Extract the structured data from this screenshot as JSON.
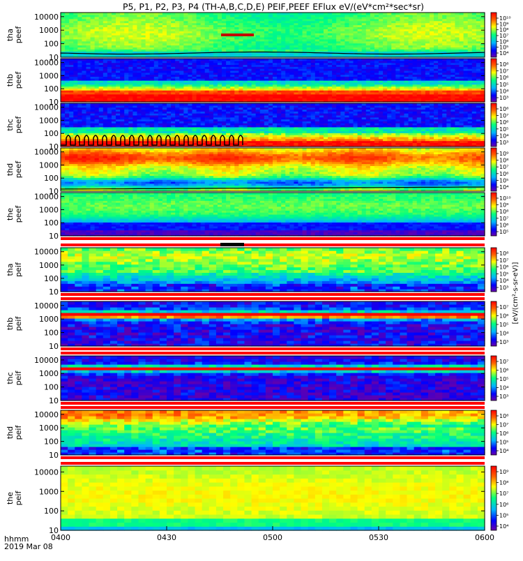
{
  "chart_data": {
    "type": "heatmap",
    "title": "P5, P1, P2, P3, P4 (TH-A,B,C,D,E) PEIF,PEEF EFlux eV/(eV*cm²*sec*sr)",
    "x_ticks": [
      "0400",
      "0430",
      "0500",
      "0530",
      "0600"
    ],
    "x_range": [
      "0400",
      "0600"
    ],
    "x_axis_left_label": "hhmm",
    "date_label": "2019 Mar 08",
    "y_scale": "log",
    "y_range": [
      10,
      20000
    ],
    "y_ticks": [
      "10000",
      "1000",
      "100",
      "10"
    ],
    "colorbar_label": "[eV/(cm²-s-sr-eV)]",
    "colorscale": [
      "#6a00a8",
      "#0000ff",
      "#00b4ff",
      "#00ff80",
      "#ffff00",
      "#ff6000",
      "#ff0000"
    ],
    "panels": [
      {
        "ylabel": [
          "tha",
          "peef"
        ],
        "cb_ticks": [
          "10¹⁰",
          "10⁹",
          "10⁸",
          "10⁷",
          "10⁶",
          "10⁵",
          "10⁴"
        ]
      },
      {
        "ylabel": [
          "thb",
          "peef"
        ],
        "cb_ticks": [
          "10⁸",
          "10⁷",
          "10⁶",
          "10⁵",
          "10⁴",
          "10³"
        ]
      },
      {
        "ylabel": [
          "thc",
          "peef"
        ],
        "cb_ticks": [
          "10⁸",
          "10⁷",
          "10⁶",
          "10⁵",
          "10⁴",
          "10³"
        ]
      },
      {
        "ylabel": [
          "thd",
          "peef"
        ],
        "cb_ticks": [
          "10⁹",
          "10⁸",
          "10⁷",
          "10⁶",
          "10⁵",
          "10⁴"
        ]
      },
      {
        "ylabel": [
          "the",
          "peef"
        ],
        "cb_ticks": [
          "10¹⁰",
          "10⁹",
          "10⁸",
          "10⁷",
          "10⁶",
          "10⁵"
        ]
      },
      {
        "ylabel": [
          "tha",
          "peif"
        ],
        "cb_ticks": [
          "10⁸",
          "10⁷",
          "10⁶",
          "10⁵",
          "10⁴",
          "10³"
        ]
      },
      {
        "ylabel": [
          "thb",
          "peif"
        ],
        "cb_ticks": [
          "10⁷",
          "10⁶",
          "10⁵",
          "10⁴",
          "10³"
        ]
      },
      {
        "ylabel": [
          "thc",
          "peif"
        ],
        "cb_ticks": [
          "10⁷",
          "10⁶",
          "10⁵",
          "10⁴",
          "10³"
        ]
      },
      {
        "ylabel": [
          "thd",
          "peif"
        ],
        "cb_ticks": [
          "10⁸",
          "10⁷",
          "10⁶",
          "10⁵",
          "10⁴"
        ]
      },
      {
        "ylabel": [
          "the",
          "peif"
        ],
        "cb_ticks": [
          "10⁹",
          "10⁸",
          "10⁷",
          "10⁶",
          "10⁵",
          "10⁴"
        ]
      }
    ]
  }
}
